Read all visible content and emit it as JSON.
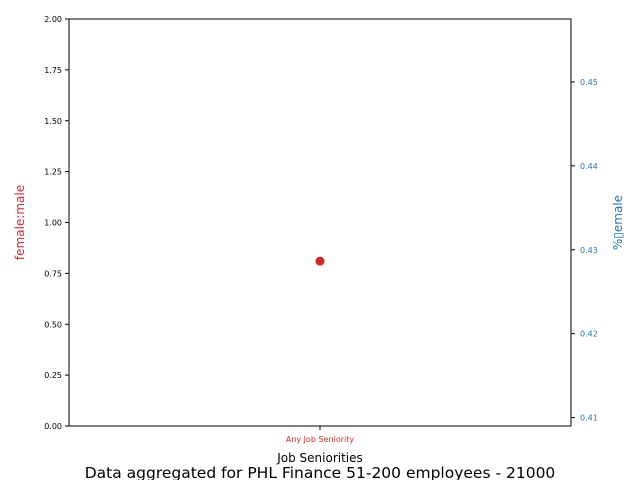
{
  "colors": {
    "female_male": "#d62728",
    "pct_female": "#1f77b4",
    "axes": "#000000"
  },
  "chart_data": {
    "type": "scatter",
    "footer": "Data aggregated for PHL Finance 51-200 employees - 21000",
    "xlabel": "Job Seniorities",
    "categories": [
      "Any Job Seniority"
    ],
    "left_axis": {
      "label": "female:male",
      "ylim": [
        0,
        2
      ],
      "ticks": [
        0,
        0.25,
        0.5,
        0.75,
        1.0,
        1.25,
        1.5,
        1.75,
        2.0
      ],
      "tick_labels": [
        "0.00",
        "0.25",
        "0.50",
        "0.75",
        "1.00",
        "1.25",
        "1.50",
        "1.75",
        "2.00"
      ]
    },
    "right_axis": {
      "label": "%▯emale",
      "ylim": [
        0.409,
        0.4575
      ],
      "ticks": [
        0.41,
        0.42,
        0.43,
        0.44,
        0.45
      ],
      "tick_labels": [
        "0.41",
        "0.42",
        "0.43",
        "0.44",
        "0.45"
      ]
    },
    "series": [
      {
        "axis": "left",
        "marker": "circle",
        "values": [
          0.81
        ]
      }
    ],
    "grid": false
  }
}
